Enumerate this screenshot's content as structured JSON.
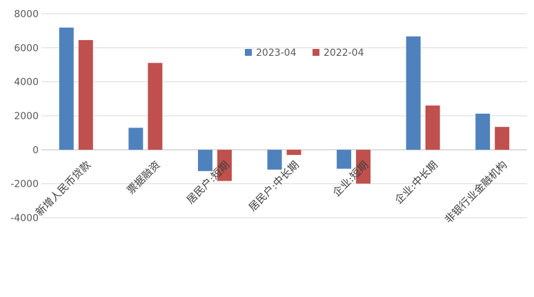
{
  "chart_data": {
    "type": "bar",
    "title": "",
    "xlabel": "",
    "ylabel": "",
    "categories": [
      "新增人民币贷款",
      "票据融资",
      "居民户:短期",
      "居民户:中长期",
      "企业:短期",
      "企业:中长期",
      "非银行业金融机构"
    ],
    "series": [
      {
        "name": "2023-04",
        "color": "#4f81bd",
        "values": [
          7188,
          1293,
          -1255,
          -1170,
          -1115,
          6669,
          2124
        ]
      },
      {
        "name": "2022-04",
        "color": "#c0504d",
        "values": [
          6454,
          5109,
          -1836,
          -305,
          -1990,
          2604,
          1345
        ]
      }
    ],
    "ylim": [
      -4000,
      8000
    ],
    "yticks": [
      -4000,
      -2000,
      0,
      2000,
      4000,
      6000,
      8000
    ],
    "ytick_labels": [
      "-4000",
      "-2000",
      "0",
      "2000",
      "4000",
      "6000",
      "8000"
    ],
    "grid": true,
    "legend_position": "top-center"
  }
}
